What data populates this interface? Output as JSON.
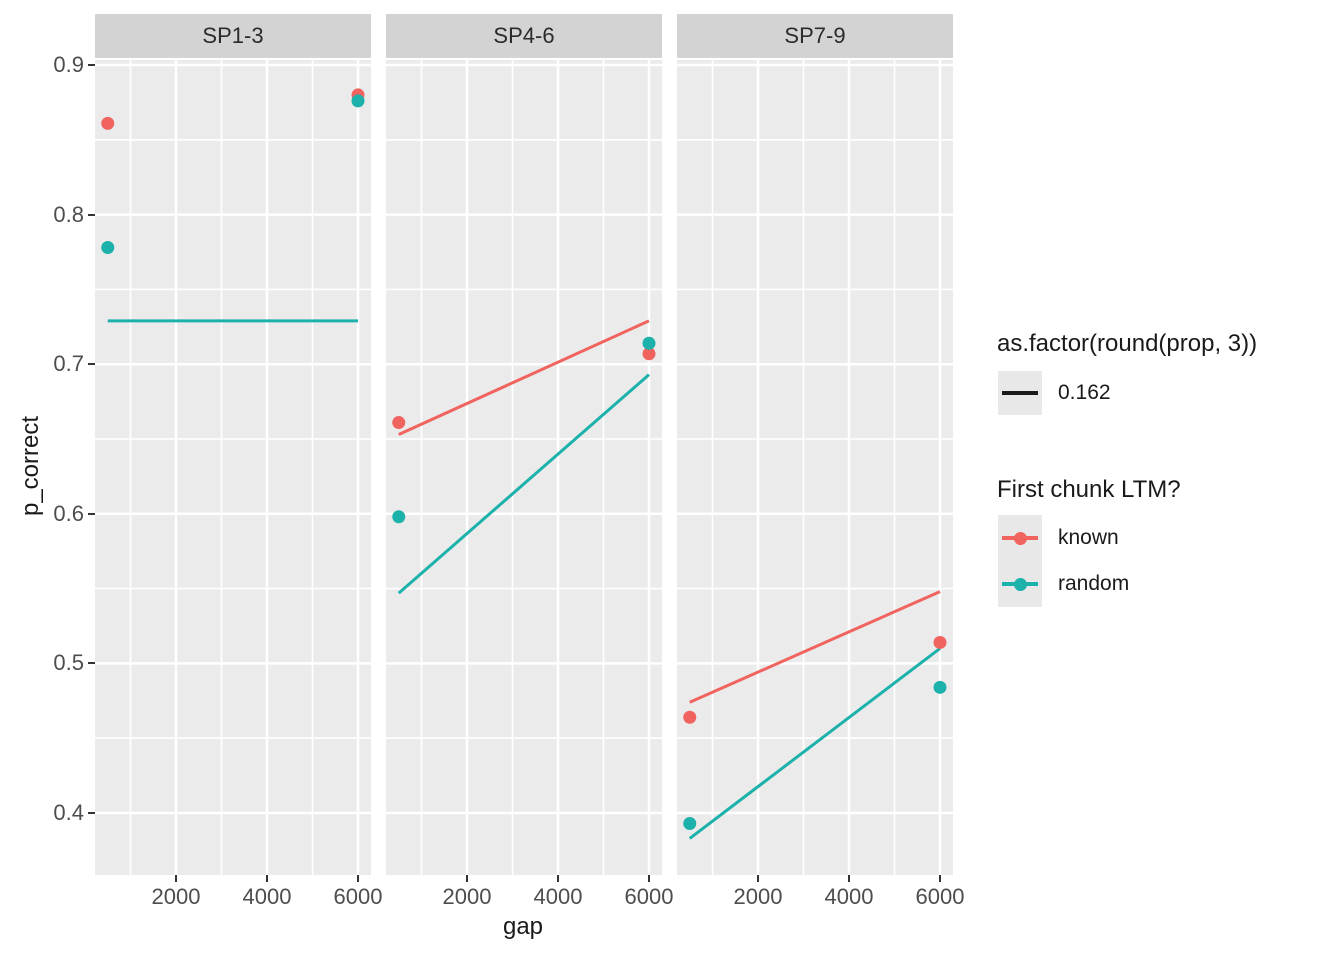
{
  "chart_data": {
    "type": "scatter",
    "x": {
      "label": "gap",
      "tick_labels": [
        "2000",
        "4000",
        "6000"
      ],
      "tick_values": [
        2000,
        4000,
        6000
      ],
      "minor_tick_values": [
        1000,
        3000,
        5000
      ],
      "data_gap_values": [
        500,
        6000
      ]
    },
    "y": {
      "label": "p_correct",
      "tick_labels": [
        "0.9",
        "0.8",
        "0.7",
        "0.6",
        "0.5",
        "0.4"
      ],
      "tick_values": [
        0.9,
        0.8,
        0.7,
        0.6,
        0.5,
        0.4
      ],
      "minor_tick_values": [
        0.85,
        0.75,
        0.65,
        0.55,
        0.45
      ]
    },
    "series": [
      {
        "id": "known",
        "label": "known",
        "color": "#F0635F"
      },
      {
        "id": "random",
        "label": "random",
        "color": "#1CB2AB"
      }
    ],
    "facets": [
      {
        "label": "SP1-3",
        "points": [
          {
            "series": "known",
            "gap": 500,
            "p_correct": 0.861
          },
          {
            "series": "known",
            "gap": 6000,
            "p_correct": 0.88
          },
          {
            "series": "random",
            "gap": 500,
            "p_correct": 0.778
          },
          {
            "series": "random",
            "gap": 6000,
            "p_correct": 0.876
          }
        ],
        "lines": [
          {
            "series": "random",
            "from": {
              "gap": 500,
              "p_correct": 0.729
            },
            "to": {
              "gap": 6000,
              "p_correct": 0.729
            }
          }
        ]
      },
      {
        "label": "SP4-6",
        "points": [
          {
            "series": "known",
            "gap": 500,
            "p_correct": 0.661
          },
          {
            "series": "known",
            "gap": 6000,
            "p_correct": 0.707
          },
          {
            "series": "random",
            "gap": 500,
            "p_correct": 0.598
          },
          {
            "series": "random",
            "gap": 6000,
            "p_correct": 0.714
          }
        ],
        "lines": [
          {
            "series": "known",
            "from": {
              "gap": 500,
              "p_correct": 0.653
            },
            "to": {
              "gap": 6000,
              "p_correct": 0.729
            }
          },
          {
            "series": "random",
            "from": {
              "gap": 500,
              "p_correct": 0.547
            },
            "to": {
              "gap": 6000,
              "p_correct": 0.693
            }
          }
        ]
      },
      {
        "label": "SP7-9",
        "points": [
          {
            "series": "known",
            "gap": 500,
            "p_correct": 0.464
          },
          {
            "series": "known",
            "gap": 6000,
            "p_correct": 0.514
          },
          {
            "series": "random",
            "gap": 500,
            "p_correct": 0.393
          },
          {
            "series": "random",
            "gap": 6000,
            "p_correct": 0.484
          }
        ],
        "lines": [
          {
            "series": "known",
            "from": {
              "gap": 500,
              "p_correct": 0.474
            },
            "to": {
              "gap": 6000,
              "p_correct": 0.548
            }
          },
          {
            "series": "random",
            "from": {
              "gap": 500,
              "p_correct": 0.383
            },
            "to": {
              "gap": 6000,
              "p_correct": 0.51
            }
          }
        ]
      }
    ],
    "legend": {
      "prop_title": "as.factor(round(prop, 3))",
      "prop_item_label": "0.162",
      "prop_item_color": "#1A1A1A",
      "ltm_title": "First chunk LTM?"
    },
    "layout_hints": {
      "grid": "white major and minor gridlines on grey panels",
      "legend_position": "right"
    }
  },
  "colors": {
    "panel_bg": "#EBEBEB",
    "strip_bg": "#D3D3D3",
    "grid": "#FFFFFF",
    "axis_text": "#4D4D4D",
    "tick_mark": "#333333",
    "title_text": "#1A1A1A",
    "legend_key_bg": "#E8E8E8"
  }
}
